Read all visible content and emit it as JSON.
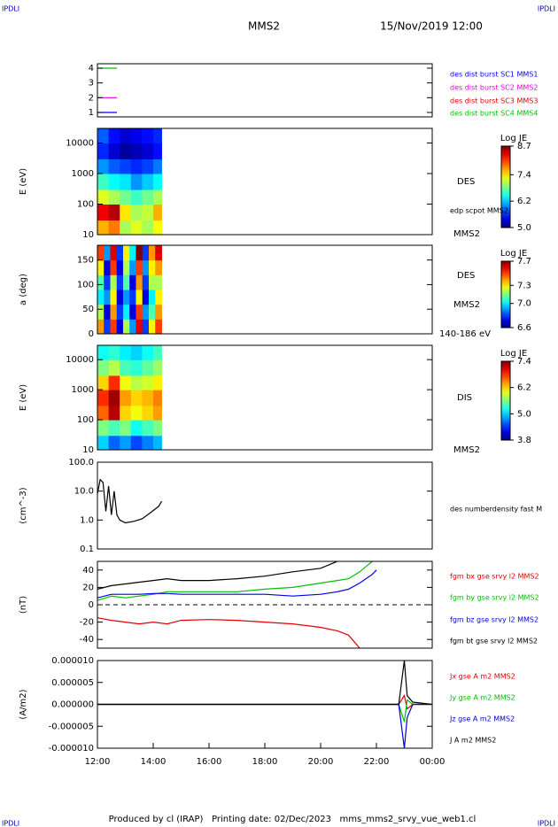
{
  "header": {
    "left": "IPDLI",
    "right": "IPDLI",
    "title": "MMS2",
    "date": "15/Nov/2019 12:00"
  },
  "footer": {
    "text": "Produced by cl (IRAP)   Printing date: 02/Dec/2023   mms_mms2_srvy_vue_web1.cl",
    "left": "IPDLI",
    "right": "IPDLI"
  },
  "chart_data": [
    {
      "type": "line",
      "xlim": [
        12,
        24
      ],
      "ylim": [
        0.7,
        4.3
      ],
      "yticks": [
        1,
        2,
        3,
        4
      ],
      "series": [
        {
          "name": "des dist burst SC1 MMS1",
          "color": "#0000ff",
          "x": [
            12,
            12.7
          ],
          "values": [
            1,
            1
          ]
        },
        {
          "name": "des dist burst SC2 MMS2",
          "color": "#e000e0",
          "x": [
            12,
            12.7
          ],
          "values": [
            2,
            2
          ]
        },
        {
          "name": "des dist burst SC3 MMS3",
          "color": "#e00000",
          "x": [
            12,
            12.7
          ],
          "values": [
            null,
            null
          ]
        },
        {
          "name": "des dist burst SC4 MMS4",
          "color": "#00c000",
          "x": [
            12,
            12.7
          ],
          "values": [
            4,
            4
          ]
        }
      ]
    },
    {
      "type": "heatmap",
      "ylabel": "E (eV)",
      "ylog": true,
      "xlim": [
        12,
        24
      ],
      "ylim": [
        10,
        30000
      ],
      "yticks": [
        10,
        100,
        1000,
        10000
      ],
      "xbins": [
        12.0,
        12.4,
        12.8,
        13.2,
        13.6,
        14.0,
        14.3
      ],
      "ybins": [
        10,
        30,
        100,
        300,
        1000,
        3000,
        10000,
        30000
      ],
      "z": [
        [
          7.6,
          7.8,
          7.0,
          7.2,
          7.0,
          7.3
        ],
        [
          8.3,
          8.5,
          7.4,
          7.0,
          7.1,
          7.6
        ],
        [
          7.2,
          7.0,
          6.8,
          6.6,
          6.8,
          7.0
        ],
        [
          6.6,
          6.4,
          6.3,
          6.0,
          6.2,
          6.4
        ],
        [
          6.0,
          5.8,
          5.7,
          5.6,
          5.7,
          5.9
        ],
        [
          5.6,
          5.3,
          5.1,
          5.2,
          5.3,
          5.5
        ],
        [
          5.8,
          5.5,
          5.3,
          5.4,
          5.5,
          5.6
        ]
      ],
      "zlabel": "Log JE",
      "zlim": [
        5.0,
        8.7
      ],
      "zticks": [
        {
          "value": 5,
          "label": "5.0"
        },
        6.2,
        7.4,
        8.7
      ],
      "annotations": [
        "DES",
        "edp scpot MMS2",
        "MMS2"
      ]
    },
    {
      "type": "heatmap",
      "ylabel": "a (deg)",
      "ylog": false,
      "xlim": [
        12,
        24
      ],
      "ylim": [
        0,
        180
      ],
      "yticks": [
        0,
        50,
        100,
        150
      ],
      "xbins": [
        12.0,
        12.23,
        12.46,
        12.69,
        12.92,
        13.15,
        13.38,
        13.61,
        13.84,
        14.07,
        14.3
      ],
      "ybins": [
        0,
        30,
        60,
        90,
        120,
        150,
        180
      ],
      "z": [
        [
          7.4,
          6.8,
          7.5,
          6.7,
          7.2,
          6.9,
          7.6,
          6.8,
          7.3,
          7.5
        ],
        [
          7.2,
          6.7,
          7.4,
          6.8,
          7.0,
          6.7,
          7.5,
          6.9,
          7.1,
          7.4
        ],
        [
          7.0,
          6.9,
          7.3,
          6.7,
          6.9,
          6.8,
          7.3,
          6.7,
          7.0,
          7.3
        ],
        [
          7.1,
          6.8,
          7.2,
          6.8,
          7.1,
          6.7,
          7.4,
          6.8,
          7.2,
          7.2
        ],
        [
          7.3,
          6.7,
          7.5,
          6.7,
          7.2,
          6.9,
          7.5,
          6.9,
          7.3,
          7.4
        ],
        [
          7.5,
          6.9,
          7.6,
          6.8,
          7.3,
          7.0,
          7.7,
          6.8,
          7.4,
          7.6
        ]
      ],
      "zlabel": "Log JE",
      "zlim": [
        6.6,
        7.7
      ],
      "zticks": [
        6.6,
        {
          "value": 7,
          "label": "7.0"
        },
        7.3,
        7.7
      ],
      "annotations": [
        "DES",
        "MMS2",
        "140-186 eV"
      ]
    },
    {
      "type": "heatmap",
      "ylabel": "E (eV)",
      "ylog": true,
      "xlim": [
        12,
        24
      ],
      "ylim": [
        10,
        30000
      ],
      "yticks": [
        10,
        100,
        1000,
        10000
      ],
      "xbins": [
        12.0,
        12.4,
        12.8,
        13.2,
        13.6,
        14.0,
        14.3
      ],
      "ybins": [
        10,
        30,
        100,
        300,
        1000,
        3000,
        10000,
        30000
      ],
      "z": [
        [
          5.0,
          4.6,
          4.8,
          4.5,
          4.7,
          4.9
        ],
        [
          5.6,
          5.4,
          5.6,
          5.2,
          5.4,
          5.6
        ],
        [
          6.6,
          7.2,
          6.2,
          6.0,
          6.2,
          6.4
        ],
        [
          6.8,
          7.3,
          6.4,
          6.2,
          6.3,
          6.5
        ],
        [
          6.2,
          6.8,
          6.0,
          5.8,
          5.9,
          6.1
        ],
        [
          5.6,
          5.8,
          5.4,
          5.3,
          5.5,
          5.7
        ],
        [
          5.2,
          5.3,
          5.1,
          5.0,
          5.2,
          5.4
        ]
      ],
      "zlabel": "Log JE",
      "zlim": [
        3.8,
        7.4
      ],
      "zticks": [
        3.8,
        {
          "value": 5,
          "label": "5.0"
        },
        6.2,
        7.4
      ],
      "annotations": [
        "DIS",
        "MMS2"
      ]
    },
    {
      "type": "line",
      "ylabel": "(cm^-3)",
      "ylog": true,
      "xlim": [
        12,
        24
      ],
      "ylim": [
        0.1,
        100
      ],
      "yticks": [
        0.1,
        {
          "value": 1,
          "label": "1.0"
        },
        {
          "value": 10,
          "label": "10.0"
        },
        {
          "value": 100,
          "label": "100.0"
        }
      ],
      "series": [
        {
          "color": "#000000",
          "x": [
            12.0,
            12.1,
            12.2,
            12.3,
            12.4,
            12.5,
            12.6,
            12.7,
            12.8,
            13.0,
            13.3,
            13.6,
            13.9,
            14.2,
            14.3
          ],
          "values": [
            8,
            25,
            20,
            2,
            15,
            1.5,
            10,
            1.5,
            1.0,
            0.8,
            0.9,
            1.1,
            1.8,
            3,
            4.5
          ]
        }
      ],
      "annotations": [
        "des numberdensity fast M"
      ]
    },
    {
      "type": "line",
      "ylabel": "(nT)",
      "ylog": false,
      "xlim": [
        12,
        24
      ],
      "ylim": [
        -50,
        50
      ],
      "yticks": [
        -40,
        -20,
        0,
        20,
        40
      ],
      "zero_line": true,
      "x": [
        12,
        12.5,
        13,
        13.5,
        14,
        14.5,
        15,
        16,
        17,
        18,
        19,
        20,
        20.6,
        21,
        21.4,
        21.85,
        22
      ],
      "series": [
        {
          "name": "fgm bx gse srvy l2 MMS2",
          "color": "#e00000",
          "values": [
            -15,
            -18,
            -20,
            -22,
            -20,
            -22,
            -18,
            -17,
            -18,
            -20,
            -22,
            -26,
            -30,
            -35,
            -50,
            null,
            null
          ]
        },
        {
          "name": "fgm by gse srvy l2 MMS2",
          "color": "#00c000",
          "values": [
            5,
            10,
            8,
            10,
            12,
            15,
            15,
            15,
            15,
            18,
            20,
            25,
            28,
            30,
            38,
            50,
            null
          ]
        },
        {
          "name": "fgm bz gse srvy l2 MMS2",
          "color": "#0000e0",
          "values": [
            8,
            12,
            12,
            12,
            13,
            13,
            12,
            12,
            12,
            12,
            10,
            12,
            15,
            18,
            25,
            35,
            40
          ]
        },
        {
          "name": "fgm bt gse srvy l2 MMS2",
          "color": "#000000",
          "values": [
            18,
            22,
            24,
            26,
            28,
            30,
            28,
            28,
            30,
            33,
            38,
            42,
            50,
            null,
            null,
            null,
            null
          ]
        }
      ]
    },
    {
      "type": "line",
      "ylabel": "(A/m2)",
      "ylog": false,
      "xlim": [
        12,
        24
      ],
      "ylim": [
        -1e-05,
        1e-05
      ],
      "yticks": [
        {
          "value": -1e-05,
          "label": "-0.000010"
        },
        {
          "value": -5e-06,
          "label": "-0.000005"
        },
        {
          "value": 0,
          "label": "0.000000"
        },
        {
          "value": 5e-06,
          "label": "0.000005"
        },
        {
          "value": 1e-05,
          "label": "0.000010"
        }
      ],
      "xticks": [
        {
          "value": 12,
          "label": "12:00"
        },
        {
          "value": 14,
          "label": "14:00"
        },
        {
          "value": 16,
          "label": "16:00"
        },
        {
          "value": 18,
          "label": "18:00"
        },
        {
          "value": 20,
          "label": "20:00"
        },
        {
          "value": 22,
          "label": "22:00"
        },
        {
          "value": 24,
          "label": "00:00"
        }
      ],
      "x": [
        12,
        14,
        16,
        18,
        20,
        22,
        22.8,
        23.0,
        23.1,
        23.3,
        24
      ],
      "series": [
        {
          "name": "Jx gse A m2 MMS2",
          "color": "#e00000",
          "values": [
            0,
            0,
            0,
            0,
            0,
            0,
            0,
            2e-06,
            -1e-06,
            0,
            0
          ]
        },
        {
          "name": "Jy gse A m2 MMS2",
          "color": "#00c000",
          "values": [
            0,
            0,
            0,
            0,
            0,
            0,
            0,
            -4e-06,
            1e-06,
            0,
            0
          ]
        },
        {
          "name": "Jz gse A m2 MMS2",
          "color": "#0000e0",
          "values": [
            0,
            0,
            0,
            0,
            0,
            0,
            0,
            -1e-05,
            -3e-06,
            0,
            0
          ]
        },
        {
          "name": "J A m2 MMS2",
          "color": "#000000",
          "values": [
            0,
            0,
            0,
            0,
            0,
            0,
            0,
            1e-05,
            2e-06,
            5e-07,
            0
          ]
        }
      ]
    }
  ]
}
